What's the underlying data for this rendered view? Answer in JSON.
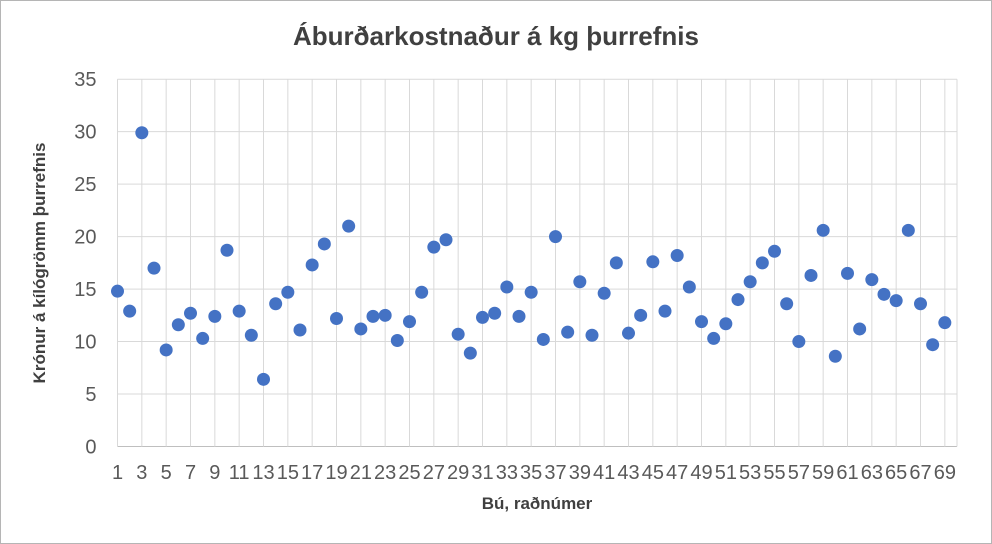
{
  "chart_data": {
    "type": "scatter",
    "title": "Áburðarkostnaður á kg þurrefnis",
    "xlabel": "Bú, raðnúmer",
    "ylabel": "Krónur á kílógrömm þurrefnis",
    "x": [
      1,
      2,
      3,
      4,
      5,
      6,
      7,
      8,
      9,
      10,
      11,
      12,
      13,
      14,
      15,
      16,
      17,
      18,
      19,
      20,
      21,
      22,
      23,
      24,
      25,
      26,
      27,
      28,
      29,
      30,
      31,
      32,
      33,
      34,
      35,
      36,
      37,
      38,
      39,
      40,
      41,
      42,
      43,
      44,
      45,
      46,
      47,
      48,
      49,
      50,
      51,
      52,
      53,
      54,
      55,
      56,
      57,
      58,
      59,
      60,
      61,
      62,
      63,
      64,
      65,
      66,
      67,
      68,
      69
    ],
    "y": [
      14.8,
      12.9,
      29.9,
      17.0,
      9.2,
      11.6,
      12.7,
      10.3,
      12.4,
      18.7,
      12.9,
      10.6,
      6.4,
      13.6,
      14.7,
      11.1,
      17.3,
      19.3,
      12.2,
      21.0,
      11.2,
      12.4,
      12.5,
      10.1,
      11.9,
      14.7,
      19.0,
      19.7,
      10.7,
      8.9,
      12.3,
      12.7,
      15.2,
      12.4,
      14.7,
      10.2,
      20.0,
      10.9,
      15.7,
      10.6,
      14.6,
      17.5,
      10.8,
      12.5,
      17.6,
      12.9,
      18.2,
      15.2,
      11.9,
      10.3,
      11.7,
      14.0,
      15.7,
      17.5,
      18.6,
      13.6,
      10.0,
      16.3,
      20.6,
      8.6,
      16.5,
      11.2,
      15.9,
      14.5,
      13.9,
      20.6,
      13.6,
      9.7,
      11.8
    ],
    "xlim": [
      1,
      70
    ],
    "ylim": [
      0,
      35
    ],
    "x_ticks": [
      1,
      3,
      5,
      7,
      9,
      11,
      13,
      15,
      17,
      19,
      21,
      23,
      25,
      27,
      29,
      31,
      33,
      35,
      37,
      39,
      41,
      43,
      45,
      47,
      49,
      51,
      53,
      55,
      57,
      59,
      61,
      63,
      65,
      67,
      69
    ],
    "y_ticks": [
      0,
      5,
      10,
      15,
      20,
      25,
      30,
      35
    ],
    "grid": true,
    "legend": "none",
    "marker_color": "#4472C4",
    "gridline_color": "#D9D9D9",
    "axis_line_color": "#BFBFBF",
    "tick_label_color": "#595959",
    "title_color": "#404040"
  }
}
